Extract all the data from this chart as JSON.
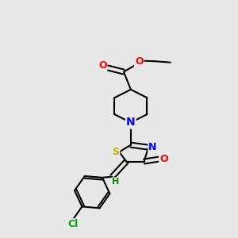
{
  "background_color": "#e8e8e8",
  "atom_colors": {
    "C": "#000000",
    "N": "#0000ff",
    "O": "#ff0000",
    "S": "#ccaa00",
    "Cl": "#00aa00",
    "H": "#008800"
  },
  "bond_color": "#000000",
  "bond_width": 1.5,
  "font_size": 9,
  "xlim": [
    0,
    10
  ],
  "ylim": [
    0,
    10
  ]
}
